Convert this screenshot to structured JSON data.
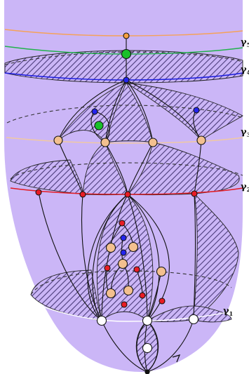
{
  "colors": {
    "surface": "#cbb6f7",
    "hatch": "#4b3c7a",
    "orange_curve": "#f5a259",
    "green_curve": "#22b24c",
    "blue_curve": "#1d1de0",
    "tan_curve": "#f1c9a0",
    "red_curve": "#e31b23",
    "node_tan": "#f3c08f",
    "node_red": "#e81d25",
    "node_blue": "#2424ee",
    "node_green": "#19c02a",
    "node_orange": "#f7a040",
    "node_white": "#ffffff"
  },
  "curve_labels": [
    {
      "id": "gamma-5",
      "symbol": "γ",
      "sub": "5"
    },
    {
      "id": "gamma-4",
      "symbol": "γ",
      "sub": "4"
    },
    {
      "id": "gamma-3",
      "symbol": "γ",
      "sub": "3"
    },
    {
      "id": "gamma-2",
      "symbol": "γ",
      "sub": "2"
    },
    {
      "id": "gamma-1",
      "symbol": "γ",
      "sub": "1"
    }
  ]
}
